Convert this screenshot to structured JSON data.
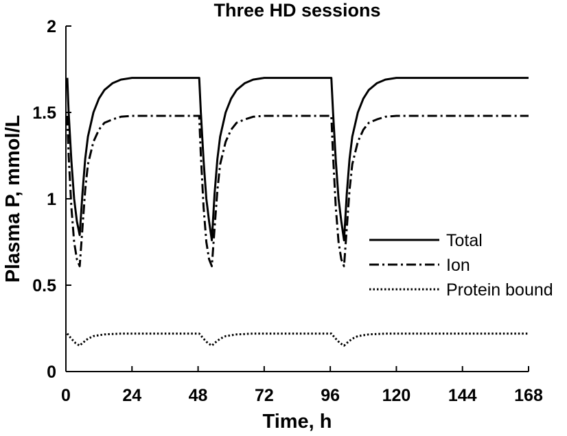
{
  "chart_data": {
    "type": "line",
    "title": "Three HD sessions",
    "xlabel": "Time, h",
    "ylabel": "Plasma P, mmol/L",
    "xlim": [
      0,
      168
    ],
    "ylim": [
      0,
      2
    ],
    "xticks": [
      0,
      24,
      48,
      72,
      96,
      120,
      144,
      168
    ],
    "yticks": [
      0,
      0.5,
      1,
      1.5,
      2
    ],
    "xtick_labels": [
      "0",
      "24",
      "48",
      "72",
      "96",
      "120",
      "144",
      "168"
    ],
    "ytick_labels": [
      "0",
      "0.5",
      "1",
      "1.5",
      "2"
    ],
    "grid": false,
    "legend_position": "right",
    "series": [
      {
        "name": "Total",
        "line_style": "solid",
        "x": [
          0.5,
          1,
          2,
          3,
          4,
          5,
          6,
          7,
          8,
          10,
          12,
          14,
          17,
          20,
          24,
          30,
          40,
          48.4,
          49,
          50,
          51,
          52,
          53,
          54,
          55,
          56,
          58,
          60,
          62,
          65,
          68,
          72,
          80,
          90,
          96.4,
          97,
          98,
          99,
          100,
          101,
          102,
          103,
          104,
          106,
          108,
          110,
          113,
          116,
          120,
          140,
          168
        ],
        "values": [
          1.7,
          1.5,
          1.22,
          1.0,
          0.87,
          0.79,
          1.03,
          1.23,
          1.36,
          1.5,
          1.58,
          1.63,
          1.67,
          1.69,
          1.7,
          1.7,
          1.7,
          1.7,
          1.5,
          1.22,
          1.0,
          0.87,
          0.76,
          1.03,
          1.23,
          1.36,
          1.5,
          1.58,
          1.63,
          1.67,
          1.69,
          1.7,
          1.7,
          1.7,
          1.7,
          1.5,
          1.22,
          1.0,
          0.87,
          0.76,
          1.03,
          1.23,
          1.36,
          1.5,
          1.58,
          1.63,
          1.67,
          1.69,
          1.7,
          1.7,
          1.7
        ]
      },
      {
        "name": "Ion",
        "line_style": "dash-dot",
        "x": [
          0.5,
          1,
          2,
          3,
          4,
          5,
          6,
          7,
          8,
          10,
          12,
          14,
          17,
          20,
          24,
          30,
          40,
          48.4,
          49,
          50,
          51,
          52,
          53,
          54,
          55,
          56,
          58,
          60,
          62,
          65,
          68,
          72,
          80,
          90,
          96.4,
          97,
          98,
          99,
          100,
          101,
          102,
          103,
          104,
          106,
          108,
          110,
          113,
          116,
          120,
          140,
          168
        ],
        "values": [
          1.48,
          1.25,
          0.95,
          0.75,
          0.65,
          0.61,
          0.83,
          1.05,
          1.2,
          1.33,
          1.4,
          1.44,
          1.46,
          1.475,
          1.48,
          1.48,
          1.48,
          1.48,
          1.25,
          0.95,
          0.75,
          0.65,
          0.61,
          0.83,
          1.05,
          1.2,
          1.33,
          1.4,
          1.44,
          1.46,
          1.475,
          1.48,
          1.48,
          1.48,
          1.48,
          1.25,
          0.95,
          0.75,
          0.65,
          0.61,
          0.83,
          1.05,
          1.2,
          1.33,
          1.4,
          1.44,
          1.46,
          1.475,
          1.48,
          1.48,
          1.48
        ]
      },
      {
        "name": "Protein bound",
        "line_style": "dotted",
        "x": [
          0.5,
          2,
          3.5,
          5,
          6,
          8,
          10,
          14,
          20,
          30,
          48.4,
          50,
          51.5,
          53,
          54,
          56,
          58,
          62,
          68,
          80,
          96.4,
          98,
          99.5,
          101,
          102,
          104,
          106,
          110,
          116,
          130,
          168
        ],
        "values": [
          0.22,
          0.19,
          0.165,
          0.15,
          0.165,
          0.19,
          0.205,
          0.215,
          0.22,
          0.22,
          0.22,
          0.19,
          0.165,
          0.15,
          0.165,
          0.19,
          0.205,
          0.215,
          0.22,
          0.22,
          0.22,
          0.19,
          0.165,
          0.15,
          0.165,
          0.19,
          0.205,
          0.215,
          0.22,
          0.22,
          0.22
        ]
      }
    ]
  }
}
